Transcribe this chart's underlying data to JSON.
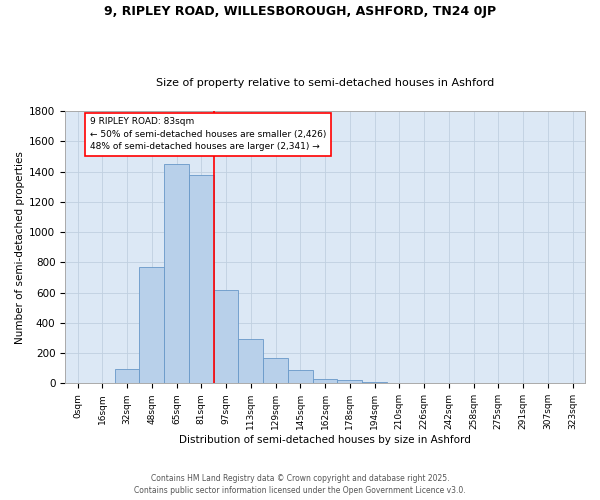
{
  "title": "9, RIPLEY ROAD, WILLESBOROUGH, ASHFORD, TN24 0JP",
  "subtitle": "Size of property relative to semi-detached houses in Ashford",
  "xlabel": "Distribution of semi-detached houses by size in Ashford",
  "ylabel": "Number of semi-detached properties",
  "bar_labels": [
    "0sqm",
    "16sqm",
    "32sqm",
    "48sqm",
    "65sqm",
    "81sqm",
    "97sqm",
    "113sqm",
    "129sqm",
    "145sqm",
    "162sqm",
    "178sqm",
    "194sqm",
    "210sqm",
    "226sqm",
    "242sqm",
    "258sqm",
    "275sqm",
    "291sqm",
    "307sqm",
    "323sqm"
  ],
  "bar_heights": [
    5,
    0,
    95,
    770,
    1450,
    1380,
    615,
    290,
    170,
    85,
    30,
    20,
    10,
    5,
    0,
    5,
    0,
    0,
    0,
    0,
    0
  ],
  "bar_color": "#b8d0ea",
  "bar_edge_color": "#6898c8",
  "vline_color": "red",
  "annotation_title": "9 RIPLEY ROAD: 83sqm",
  "annotation_line1": "← 50% of semi-detached houses are smaller (2,426)",
  "annotation_line2": "48% of semi-detached houses are larger (2,341) →",
  "annotation_box_color": "white",
  "annotation_box_edge": "red",
  "ylim": [
    0,
    1800
  ],
  "yticks": [
    0,
    200,
    400,
    600,
    800,
    1000,
    1200,
    1400,
    1600,
    1800
  ],
  "grid_color": "#c0d0e0",
  "bg_color": "#dce8f5",
  "footer_line1": "Contains HM Land Registry data © Crown copyright and database right 2025.",
  "footer_line2": "Contains public sector information licensed under the Open Government Licence v3.0."
}
